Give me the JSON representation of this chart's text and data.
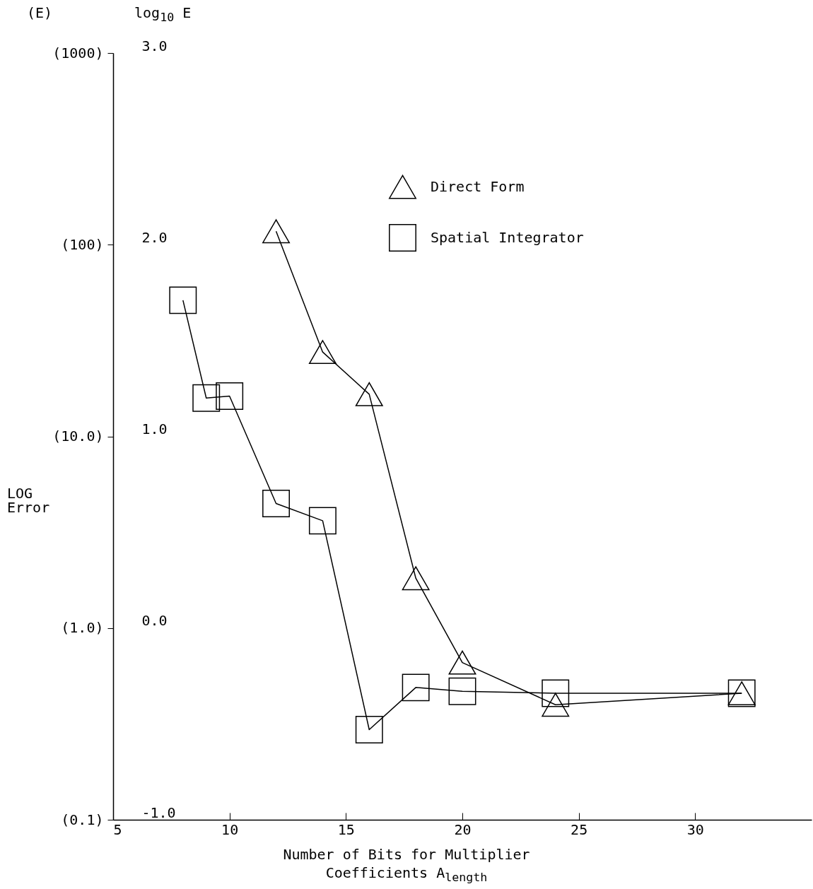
{
  "chart_data": {
    "type": "line",
    "xlabel": "Number of Bits for Multiplier Coefficients A$_{length}$",
    "ylabel": "log$_{10}$ E",
    "y2label": "(E)",
    "annotations": [
      "LOG Error"
    ],
    "xlim": [
      5,
      35
    ],
    "xticks": [
      5,
      10,
      15,
      20,
      25,
      30
    ],
    "ylim": [
      -1,
      3
    ],
    "yticks": [
      {
        "value": -1,
        "label": "-1.0"
      },
      {
        "value": 0,
        "label": "0.0"
      },
      {
        "value": 1,
        "label": "1.0"
      },
      {
        "value": 2,
        "label": "2.0"
      },
      {
        "value": 3,
        "label": "3.0"
      }
    ],
    "y2lim": [
      0.1,
      1000
    ],
    "y2ticks": [
      {
        "value": 0.1,
        "label": "(0.1)"
      },
      {
        "value": 1,
        "label": "(1.0)"
      },
      {
        "value": 10,
        "label": "(10.0)"
      },
      {
        "value": 100,
        "label": "(100)"
      },
      {
        "value": 1000,
        "label": "(1000)"
      }
    ],
    "log": "y2",
    "legend": "top right",
    "series": [
      {
        "name": "Direct Form",
        "color": "#000000",
        "marker": "triangle",
        "x": [
          12,
          14,
          16,
          18,
          20,
          24,
          32
        ],
        "values": [
          2.07,
          1.44,
          1.22,
          0.26,
          -0.18,
          -0.4,
          -0.34
        ]
      },
      {
        "name": "Spatial Integrator",
        "color": "#000000",
        "marker": "square",
        "x": [
          8,
          9,
          10,
          12,
          14,
          16,
          18,
          20,
          24,
          32
        ],
        "values": [
          1.71,
          1.2,
          1.21,
          0.65,
          0.56,
          -0.53,
          -0.31,
          -0.33,
          -0.34,
          -0.34
        ]
      }
    ]
  }
}
